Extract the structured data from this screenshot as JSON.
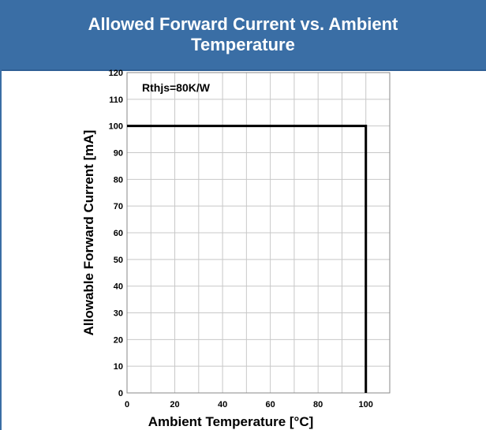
{
  "header": {
    "title": "Allowed Forward Current vs. Ambient Temperature",
    "color": "#3a6ea5"
  },
  "chart_data": {
    "type": "line",
    "title": "Allowed Forward Current vs. Ambient Temperature",
    "xlabel": "Ambient Temperature [°C]",
    "ylabel": "Allowable Forward Current [mA]",
    "xlim": [
      0,
      110
    ],
    "ylim": [
      0,
      120
    ],
    "x_ticks": [
      0,
      20,
      40,
      60,
      80,
      100
    ],
    "y_ticks": [
      0,
      10,
      20,
      30,
      40,
      50,
      60,
      70,
      80,
      90,
      100,
      110,
      120
    ],
    "grid": true,
    "annotation": "Rthjs=80K/W",
    "series": [
      {
        "x": [
          0,
          100,
          100
        ],
        "y": [
          100,
          100,
          0
        ],
        "color": "#000000"
      }
    ]
  }
}
